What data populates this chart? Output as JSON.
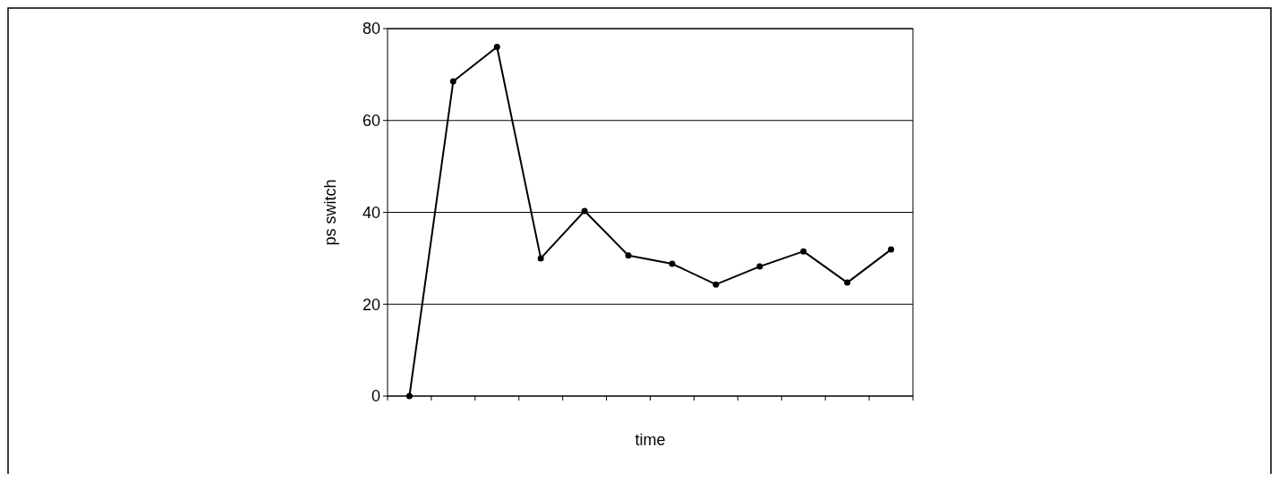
{
  "chart_data": {
    "type": "line",
    "xlabel": "time",
    "ylabel": "ps switch",
    "categories": [
      null,
      null,
      null,
      null,
      null,
      null,
      null,
      null,
      null,
      null,
      null,
      null
    ],
    "series": [
      {
        "color": "#000000",
        "values": [
          0,
          68.5,
          76,
          30,
          40.3,
          30.6,
          28.8,
          24.3,
          28.2,
          31.5,
          24.7,
          31.9
        ]
      }
    ],
    "ylim": [
      0,
      80
    ],
    "yticks": [
      0,
      20,
      40,
      60,
      80
    ],
    "grid": "y",
    "marker": "circle",
    "line_style": "solid"
  }
}
